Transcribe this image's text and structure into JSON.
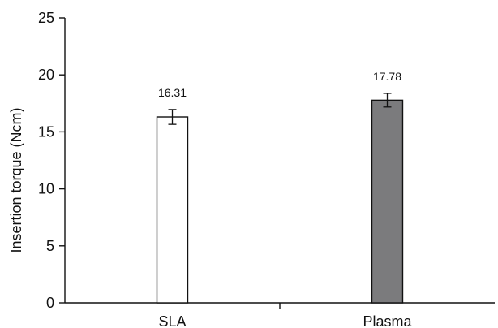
{
  "chart_data": {
    "type": "bar",
    "categories": [
      "SLA",
      "Plasma"
    ],
    "values": [
      16.31,
      17.78
    ],
    "data_labels": [
      "16.31",
      "17.78"
    ],
    "error": [
      0.65,
      0.6
    ],
    "bar_colors": [
      "#ffffff",
      "#7b7b7d"
    ],
    "title": "",
    "xlabel": "",
    "ylabel": "Insertion torque (Ncm)",
    "ylim": [
      0,
      25
    ],
    "yticks": [
      "0",
      "5",
      "10",
      "15",
      "20",
      "25"
    ],
    "grid": false,
    "legend": "none"
  }
}
